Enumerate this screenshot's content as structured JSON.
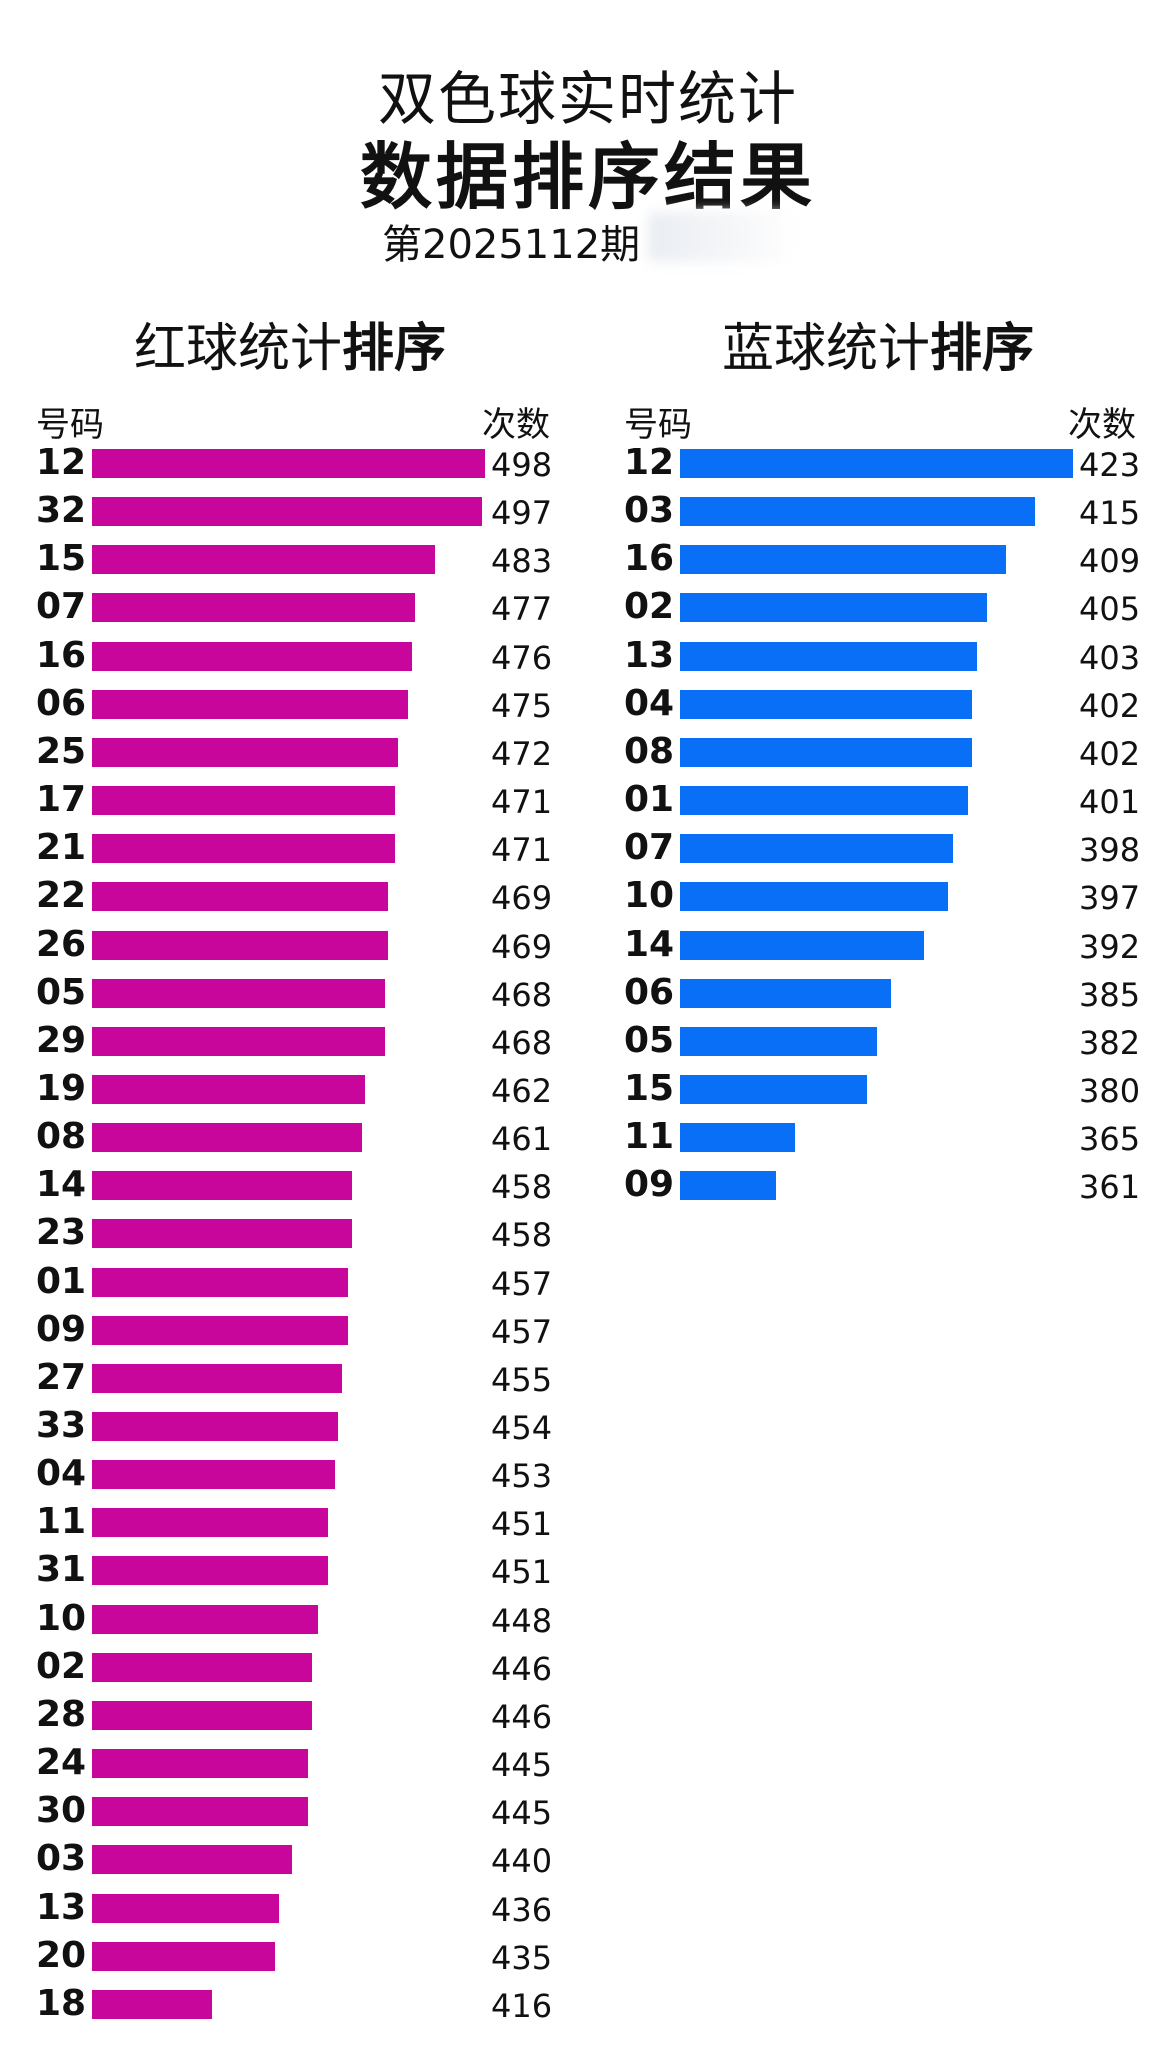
{
  "header": {
    "title": "双色球实时统计",
    "subtitle": "数据排序结果",
    "issue": "第2025112期"
  },
  "colors": {
    "red_bar": "#c8069b",
    "blue_bar": "#0a6ff7"
  },
  "red": {
    "heading_main": "红球统计",
    "heading_bold": "排序",
    "col_number": "号码",
    "col_count": "次数"
  },
  "blue": {
    "heading_main": "蓝球统计",
    "heading_bold": "排序",
    "col_number": "号码",
    "col_count": "次数"
  },
  "chart_data": [
    {
      "type": "bar",
      "orientation": "horizontal",
      "categories": [
        "12",
        "32",
        "15",
        "07",
        "16",
        "06",
        "25",
        "17",
        "21",
        "22",
        "26",
        "05",
        "29",
        "19",
        "08",
        "14",
        "23",
        "01",
        "09",
        "27",
        "33",
        "04",
        "11",
        "31",
        "10",
        "02",
        "28",
        "24",
        "30",
        "03",
        "13",
        "20",
        "18"
      ],
      "values": [
        498,
        497,
        483,
        477,
        476,
        475,
        472,
        471,
        471,
        469,
        469,
        468,
        468,
        462,
        461,
        458,
        458,
        457,
        457,
        455,
        454,
        453,
        451,
        451,
        448,
        446,
        446,
        445,
        445,
        440,
        436,
        435,
        416
      ],
      "title": "红球统计排序",
      "xlabel": "次数",
      "ylabel": "号码",
      "xlim": [
        380,
        498
      ]
    },
    {
      "type": "bar",
      "orientation": "horizontal",
      "categories": [
        "12",
        "03",
        "16",
        "02",
        "13",
        "04",
        "08",
        "01",
        "07",
        "10",
        "14",
        "06",
        "05",
        "15",
        "11",
        "09"
      ],
      "values": [
        423,
        415,
        409,
        405,
        403,
        402,
        402,
        401,
        398,
        397,
        392,
        385,
        382,
        380,
        365,
        361
      ],
      "title": "蓝球统计排序",
      "xlabel": "次数",
      "ylabel": "号码",
      "xlim": [
        341,
        423
      ]
    }
  ]
}
